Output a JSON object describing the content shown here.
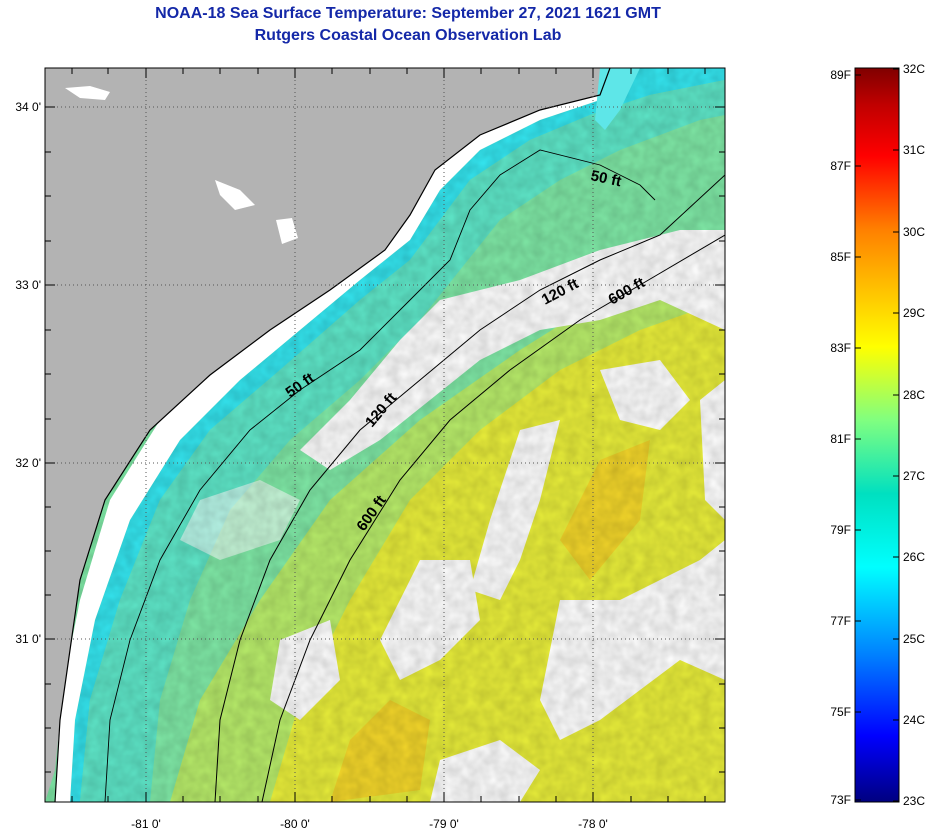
{
  "header": {
    "title": "NOAA-18 Sea Surface Temperature:  September 27, 2021 1621 GMT",
    "subtitle": "Rutgers Coastal Ocean Observation Lab"
  },
  "map": {
    "lon_labels": [
      "-81 0'",
      "-80 0'",
      "-79 0'",
      "-78 0'"
    ],
    "lat_labels": [
      "34 0'",
      "33 0'",
      "32 0'",
      "31 0'"
    ],
    "contour_labels": [
      "50 ft",
      "120 ft",
      "600 ft",
      "50 ft",
      "120 ft",
      "600 ft"
    ],
    "colors": {
      "land": "#b3b3b3",
      "cloud": "#ffffff",
      "nearshore": "#34e6f0",
      "shelf": "#7fe8a6",
      "mid": "#c8ef5a",
      "warm": "#f2ea2a",
      "warmest": "#f4c81e"
    }
  },
  "colorbar": {
    "f_labels": [
      "89F",
      "87F",
      "85F",
      "83F",
      "81F",
      "79F",
      "77F",
      "75F",
      "73F"
    ],
    "c_labels": [
      "32C",
      "31C",
      "30C",
      "29C",
      "28C",
      "27C",
      "26C",
      "25C",
      "24C",
      "23C"
    ],
    "stops": [
      "#000080",
      "#0000ff",
      "#0080ff",
      "#00ffff",
      "#00e0c0",
      "#80ff80",
      "#ffff00",
      "#ffc000",
      "#ff8000",
      "#ff0000",
      "#c00000",
      "#800000"
    ]
  }
}
